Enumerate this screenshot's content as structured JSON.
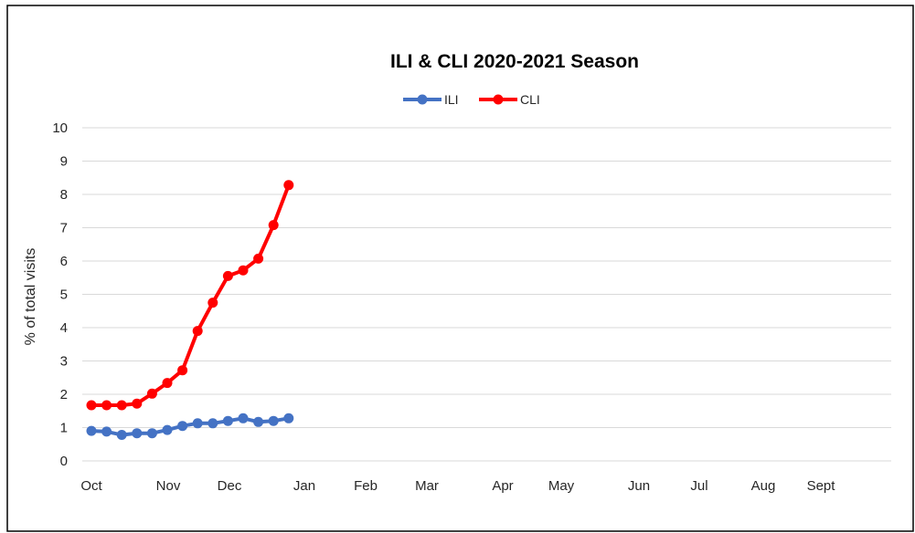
{
  "chart_data": {
    "type": "line",
    "title": "ILI & CLI 2020-2021 Season",
    "xlabel": "",
    "ylabel": "% of total visits",
    "ylim": [
      0,
      10
    ],
    "yticks": [
      0,
      1,
      2,
      3,
      4,
      5,
      6,
      7,
      8,
      9,
      10
    ],
    "grid": "horizontal",
    "legend": "top",
    "x_ticks": [
      "Oct",
      "Nov",
      "Dec",
      "Jan",
      "Feb",
      "Mar",
      "Apr",
      "May",
      "Jun",
      "Jul",
      "Aug",
      "Sept"
    ],
    "series": [
      {
        "name": "ILI",
        "color": "#4472C4",
        "values": [
          0.9,
          0.88,
          0.78,
          0.83,
          0.83,
          0.93,
          1.05,
          1.13,
          1.13,
          1.2,
          1.28,
          1.17,
          1.2,
          1.28
        ]
      },
      {
        "name": "CLI",
        "color": "#FF0000",
        "values": [
          1.67,
          1.67,
          1.67,
          1.72,
          2.02,
          2.34,
          2.72,
          3.9,
          4.75,
          5.55,
          5.72,
          6.07,
          7.08,
          8.28
        ]
      }
    ]
  }
}
